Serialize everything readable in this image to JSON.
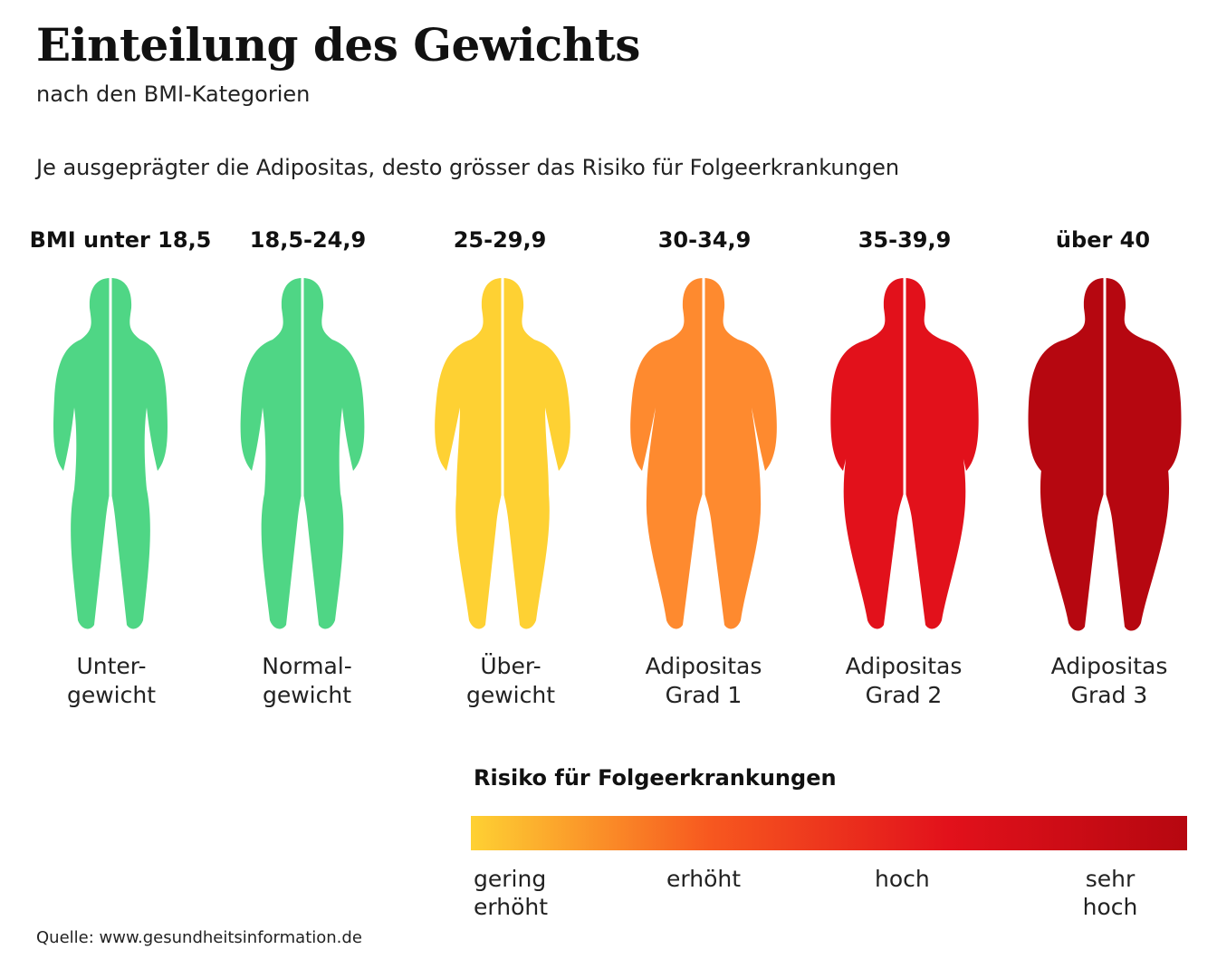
{
  "header": {
    "title": "Einteilung des Gewichts",
    "subtitle": "nach den BMI-Kategorien",
    "intro": "Je ausgeprägter die Adipositas, desto grösser das Risiko für Folgeerkrankungen"
  },
  "categories": [
    {
      "bmi": "BMI unter 18,5",
      "label_line1": "Unter-",
      "label_line2": "gewicht",
      "color": "#4fd685"
    },
    {
      "bmi": "18,5-24,9",
      "label_line1": "Normal-",
      "label_line2": "gewicht",
      "color": "#4fd685"
    },
    {
      "bmi": "25-29,9",
      "label_line1": "Über-",
      "label_line2": "gewicht",
      "color": "#fed133"
    },
    {
      "bmi": "30-34,9",
      "label_line1": "Adipositas",
      "label_line2": "Grad 1",
      "color": "#fe8a2f"
    },
    {
      "bmi": "35-39,9",
      "label_line1": "Adipositas",
      "label_line2": "Grad 2",
      "color": "#e2111b"
    },
    {
      "bmi": "über 40",
      "label_line1": "Adipositas",
      "label_line2": "Grad 3",
      "color": "#b60710"
    }
  ],
  "risk": {
    "title": "Risiko für Folgeerkrankungen",
    "gradient_colors": [
      "#fed133",
      "#f7581f",
      "#e2111b",
      "#b60710"
    ],
    "levels": [
      {
        "line1": "gering",
        "line2": "erhöht"
      },
      {
        "line1": "erhöht",
        "line2": ""
      },
      {
        "line1": "hoch",
        "line2": ""
      },
      {
        "line1": "sehr",
        "line2": "hoch"
      }
    ]
  },
  "source": "Quelle: www.gesundheitsinformation.de"
}
